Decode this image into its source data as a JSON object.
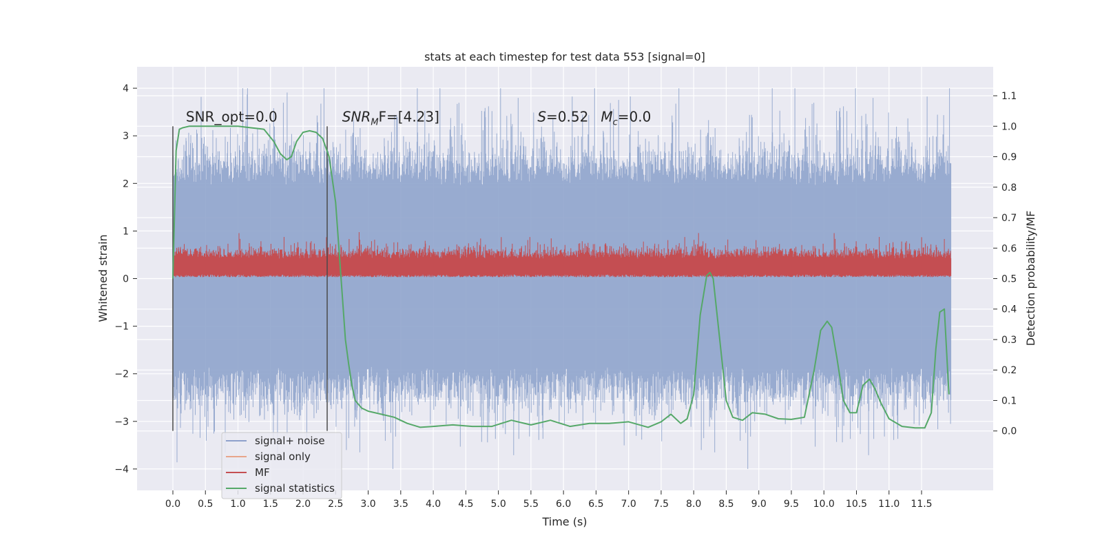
{
  "chart_data": {
    "type": "line",
    "title": "stats at each timestep for test data 553 [signal=0]",
    "xlabel": "Time (s)",
    "ylabel_left": "Whitened strain",
    "ylabel_right": "Detection probability/MF",
    "xlim": [
      -0.55,
      12.6
    ],
    "ylim_left": [
      -4.45,
      4.45
    ],
    "ylim_right": [
      -0.195,
      1.195
    ],
    "x_ticks": [
      0.0,
      0.5,
      1.0,
      1.5,
      2.0,
      2.5,
      3.0,
      3.5,
      4.0,
      4.5,
      5.0,
      5.5,
      6.0,
      6.5,
      7.0,
      7.5,
      8.0,
      8.5,
      9.0,
      9.5,
      10.0,
      10.5,
      11.0,
      11.5
    ],
    "x_tick_labels": [
      "0.0",
      "0.5",
      "1.0",
      "1.5",
      "2.0",
      "2.5",
      "3.0",
      "3.5",
      "4.0",
      "4.5",
      "5.0",
      "5.5",
      "6.0",
      "6.5",
      "7.0",
      "7.5",
      "8.0",
      "8.5",
      "9.0",
      "9.5",
      "10.0",
      "10.5",
      "11.0",
      "11.5"
    ],
    "y_ticks_left": [
      4,
      3,
      2,
      1,
      0,
      -1,
      -2,
      -3,
      -4
    ],
    "y_tick_labels_left": [
      "4",
      "3",
      "2",
      "1",
      "0",
      "−1",
      "−2",
      "−3",
      "−4"
    ],
    "y_ticks_right": [
      1.1,
      1.0,
      0.9,
      0.8,
      0.7,
      0.6,
      0.5,
      0.4,
      0.3,
      0.2,
      0.1,
      0.0
    ],
    "y_tick_labels_right": [
      "1.1",
      "1.0",
      "0.9",
      "0.8",
      "0.7",
      "0.6",
      "0.5",
      "0.4",
      "0.3",
      "0.2",
      "0.1",
      "0.0"
    ],
    "vlines": [
      {
        "x": 0.0,
        "ymin": -3.2,
        "ymax": 3.2
      },
      {
        "x": 2.37,
        "ymin": -3.2,
        "ymax": 3.2
      }
    ],
    "annotations": [
      {
        "id": "snr-opt",
        "text": "SNR_opt=0.0",
        "x": 0.2,
        "y": 3.3
      },
      {
        "id": "snr-mf",
        "text": "SNR_MF=[4.23]",
        "base": "SNR",
        "sub": "M",
        "rest": "F=[4.23]",
        "x": 2.6,
        "y": 3.3
      },
      {
        "id": "s-mc",
        "text": "S=0.52   M_c=0.0",
        "s_label": "S",
        "s_value": "=0.52",
        "m_base": "M",
        "m_sub": "c",
        "m_value": "=0.0",
        "x": 5.6,
        "y": 3.3
      }
    ],
    "noise_band": {
      "x_range": [
        0.0,
        11.95
      ],
      "typical_range": [
        -1.9,
        2.0
      ],
      "peak_range": [
        -4.0,
        4.0
      ],
      "note": "dense whitened strain noise trace"
    },
    "mf_band": {
      "x_range": [
        0.0,
        11.95
      ],
      "typical_range": [
        0.05,
        0.6
      ],
      "peak_max": 1.0
    },
    "signal_statistics": {
      "x": [
        0.0,
        0.05,
        0.1,
        0.15,
        0.25,
        0.4,
        0.6,
        0.8,
        1.0,
        1.2,
        1.4,
        1.55,
        1.65,
        1.75,
        1.82,
        1.9,
        2.0,
        2.1,
        2.2,
        2.3,
        2.4,
        2.5,
        2.6,
        2.65,
        2.7,
        2.75,
        2.8,
        2.9,
        3.0,
        3.2,
        3.4,
        3.6,
        3.8,
        4.0,
        4.3,
        4.6,
        4.9,
        5.2,
        5.5,
        5.8,
        6.1,
        6.4,
        6.7,
        7.0,
        7.3,
        7.5,
        7.65,
        7.8,
        7.9,
        8.0,
        8.1,
        8.2,
        8.25,
        8.3,
        8.4,
        8.5,
        8.6,
        8.75,
        8.9,
        9.1,
        9.3,
        9.5,
        9.7,
        9.85,
        9.95,
        10.05,
        10.12,
        10.2,
        10.3,
        10.4,
        10.5,
        10.6,
        10.7,
        10.78,
        10.88,
        11.0,
        11.2,
        11.4,
        11.55,
        11.65,
        11.72,
        11.78,
        11.85,
        11.92
      ],
      "y": [
        0.5,
        0.92,
        0.99,
        0.995,
        1.0,
        1.0,
        1.0,
        1.0,
        1.0,
        0.995,
        0.99,
        0.95,
        0.91,
        0.89,
        0.9,
        0.95,
        0.98,
        0.985,
        0.98,
        0.96,
        0.9,
        0.75,
        0.45,
        0.3,
        0.22,
        0.15,
        0.1,
        0.075,
        0.065,
        0.055,
        0.045,
        0.025,
        0.012,
        0.015,
        0.02,
        0.015,
        0.015,
        0.035,
        0.02,
        0.035,
        0.015,
        0.025,
        0.025,
        0.03,
        0.012,
        0.03,
        0.055,
        0.025,
        0.04,
        0.12,
        0.38,
        0.51,
        0.52,
        0.5,
        0.3,
        0.1,
        0.045,
        0.035,
        0.06,
        0.055,
        0.04,
        0.038,
        0.045,
        0.2,
        0.33,
        0.36,
        0.34,
        0.24,
        0.1,
        0.06,
        0.06,
        0.15,
        0.17,
        0.14,
        0.09,
        0.04,
        0.015,
        0.01,
        0.01,
        0.06,
        0.27,
        0.39,
        0.4,
        0.12
      ]
    },
    "legend": {
      "placement": "lower-left",
      "entries": [
        {
          "label": "signal+ noise",
          "color": "#8da0cb"
        },
        {
          "label": "signal only",
          "color": "#e8a58a"
        },
        {
          "label": "MF",
          "color": "#c44e52"
        },
        {
          "label": "signal statistics",
          "color": "#55a868"
        }
      ]
    },
    "colors": {
      "plot_bg": "#eaeaf2",
      "grid": "#ffffff",
      "noise": "#8fa4cc",
      "mf": "#c44e52",
      "stat": "#55a868",
      "vline": "#4a4a4a"
    }
  }
}
